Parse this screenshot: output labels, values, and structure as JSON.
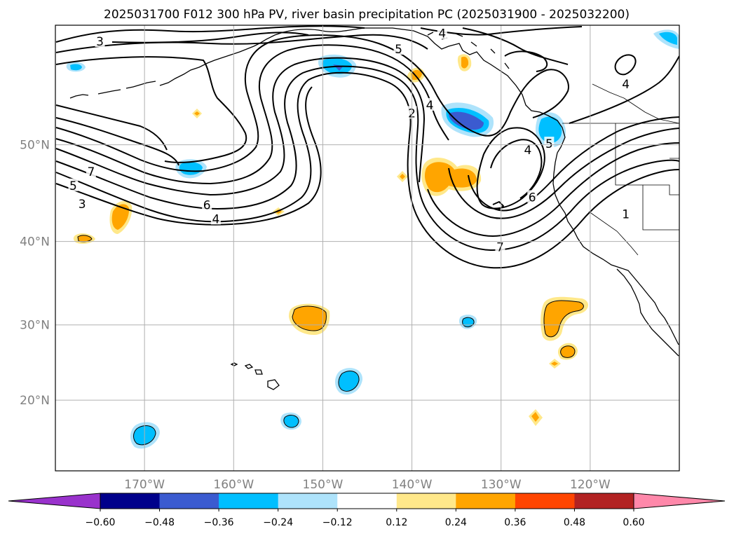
{
  "title": "2025031700 F012 300 hPa PV, river basin precipitation PC (2025031900 - 2025032200)",
  "chart_data": {
    "type": "contour_map",
    "title": "2025031700 F012 300 hPa PV, river basin precipitation PC (2025031900 - 2025032200)",
    "lon_range": [
      180,
      110
    ],
    "lat_range": [
      10,
      60
    ],
    "lon_ticks": [
      "170°W",
      "160°W",
      "150°W",
      "140°W",
      "130°W",
      "120°W"
    ],
    "lon_tick_values": [
      170,
      160,
      150,
      140,
      130,
      120
    ],
    "lat_ticks": [
      "20°N",
      "30°N",
      "40°N",
      "50°N"
    ],
    "lat_tick_values": [
      20,
      30,
      40,
      50
    ],
    "grid": true,
    "contour_field": "300 hPa PV",
    "contour_levels": [
      1,
      2,
      3,
      4,
      5,
      6,
      7
    ],
    "contour_labels": [
      {
        "text": "3",
        "lon": 175,
        "lat": 58.8
      },
      {
        "text": "5",
        "lon": 141.5,
        "lat": 58.2
      },
      {
        "text": "4",
        "lon": 136.6,
        "lat": 59.4
      },
      {
        "text": "4",
        "lon": 116,
        "lat": 55.4
      },
      {
        "text": "2",
        "lon": 140,
        "lat": 52.9
      },
      {
        "text": "4",
        "lon": 138,
        "lat": 53.6
      },
      {
        "text": "4",
        "lon": 127,
        "lat": 49.5
      },
      {
        "text": "5",
        "lon": 124.6,
        "lat": 50.1
      },
      {
        "text": "7",
        "lon": 176,
        "lat": 47.4
      },
      {
        "text": "5",
        "lon": 178,
        "lat": 46.0
      },
      {
        "text": "3",
        "lon": 177,
        "lat": 44.1
      },
      {
        "text": "6",
        "lon": 163,
        "lat": 44.0
      },
      {
        "text": "4",
        "lon": 162,
        "lat": 42.5
      },
      {
        "text": "6",
        "lon": 126.5,
        "lat": 44.8
      },
      {
        "text": "1",
        "lon": 116,
        "lat": 43.0
      },
      {
        "text": "7",
        "lon": 130.1,
        "lat": 39.4
      }
    ],
    "fill_field": "river basin precipitation PC",
    "colorbar": {
      "ticks": [
        "−0.60",
        "−0.48",
        "−0.36",
        "−0.24",
        "−0.12",
        "0.12",
        "0.24",
        "0.36",
        "0.48",
        "0.60"
      ],
      "bounds": [
        -0.6,
        -0.48,
        -0.36,
        -0.24,
        -0.12,
        0.12,
        0.24,
        0.36,
        0.48,
        0.6
      ],
      "colors": [
        "#9932cc",
        "#00008b",
        "#3b5bd0",
        "#00bfff",
        "#aee3fb",
        "#ffffff",
        "#ffe88a",
        "#ffa500",
        "#ff4500",
        "#b22222",
        "#ff88aa"
      ],
      "extend": "both"
    }
  }
}
